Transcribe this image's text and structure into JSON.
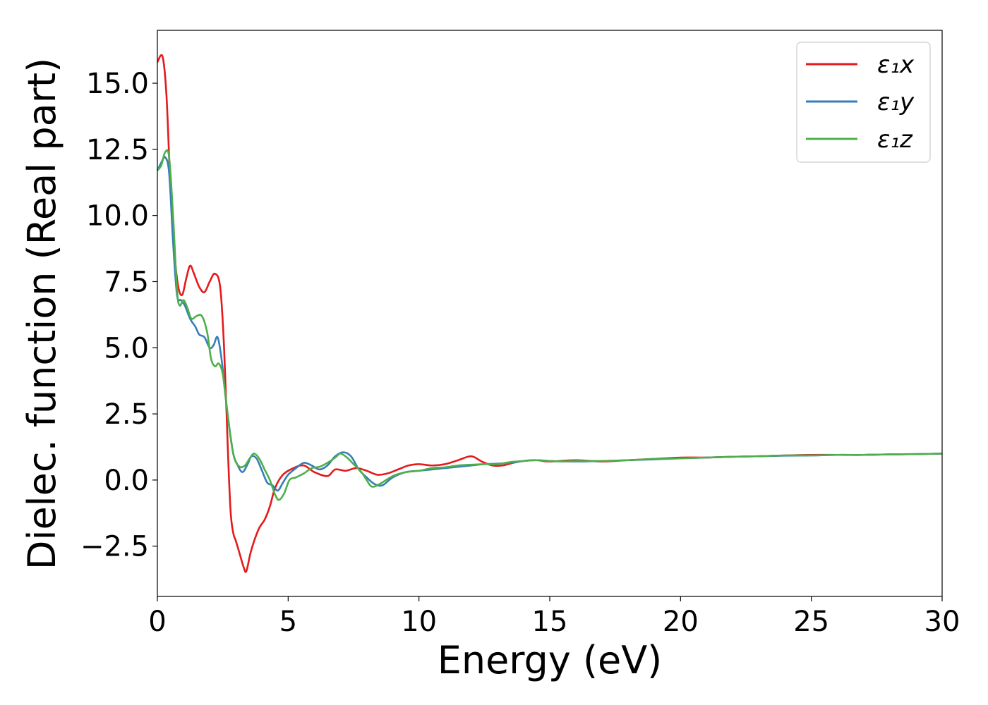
{
  "chart_data": {
    "type": "line",
    "xlabel": "Energy (eV)",
    "ylabel": "Dielec. function (Real part)",
    "xlim": [
      0,
      30
    ],
    "ylim": [
      -4.4,
      17.0
    ],
    "xticks": [
      0,
      5,
      10,
      15,
      20,
      25,
      30
    ],
    "xtick_labels": [
      "0",
      "5",
      "10",
      "15",
      "20",
      "25",
      "30"
    ],
    "yticks": [
      -2.5,
      0.0,
      2.5,
      5.0,
      7.5,
      10.0,
      12.5,
      15.0
    ],
    "ytick_labels": [
      "−2.5",
      "0.0",
      "2.5",
      "5.0",
      "7.5",
      "10.0",
      "12.5",
      "15.0"
    ],
    "grid": false,
    "legend_position": "top-right",
    "series": [
      {
        "name": "ε₁x",
        "color": "#e41a1c",
        "points": [
          [
            0,
            15.8
          ],
          [
            0.2,
            16.0
          ],
          [
            0.35,
            14.5
          ],
          [
            0.5,
            11.0
          ],
          [
            0.65,
            8.6
          ],
          [
            0.8,
            7.3
          ],
          [
            0.95,
            7.0
          ],
          [
            1.1,
            7.6
          ],
          [
            1.25,
            8.1
          ],
          [
            1.4,
            7.8
          ],
          [
            1.6,
            7.3
          ],
          [
            1.8,
            7.1
          ],
          [
            2.0,
            7.5
          ],
          [
            2.2,
            7.8
          ],
          [
            2.4,
            7.3
          ],
          [
            2.55,
            5.0
          ],
          [
            2.7,
            1.0
          ],
          [
            2.8,
            -1.2
          ],
          [
            2.9,
            -2.0
          ],
          [
            3.0,
            -2.3
          ],
          [
            3.15,
            -2.8
          ],
          [
            3.3,
            -3.3
          ],
          [
            3.4,
            -3.45
          ],
          [
            3.55,
            -2.8
          ],
          [
            3.7,
            -2.3
          ],
          [
            3.9,
            -1.8
          ],
          [
            4.1,
            -1.5
          ],
          [
            4.3,
            -1.0
          ],
          [
            4.5,
            -0.3
          ],
          [
            4.8,
            0.2
          ],
          [
            5.2,
            0.45
          ],
          [
            5.6,
            0.55
          ],
          [
            6.0,
            0.3
          ],
          [
            6.5,
            0.15
          ],
          [
            6.8,
            0.4
          ],
          [
            7.2,
            0.35
          ],
          [
            7.6,
            0.45
          ],
          [
            8.0,
            0.35
          ],
          [
            8.4,
            0.2
          ],
          [
            8.8,
            0.25
          ],
          [
            9.2,
            0.4
          ],
          [
            9.6,
            0.55
          ],
          [
            10.0,
            0.6
          ],
          [
            10.5,
            0.55
          ],
          [
            11.0,
            0.6
          ],
          [
            11.5,
            0.75
          ],
          [
            12.0,
            0.9
          ],
          [
            12.4,
            0.7
          ],
          [
            12.8,
            0.55
          ],
          [
            13.2,
            0.55
          ],
          [
            13.6,
            0.65
          ],
          [
            14.0,
            0.72
          ],
          [
            14.5,
            0.75
          ],
          [
            15.0,
            0.7
          ],
          [
            16.0,
            0.75
          ],
          [
            17.0,
            0.7
          ],
          [
            18.0,
            0.75
          ],
          [
            19.0,
            0.8
          ],
          [
            20.0,
            0.85
          ],
          [
            21.0,
            0.85
          ],
          [
            22.0,
            0.88
          ],
          [
            23.0,
            0.9
          ],
          [
            24.0,
            0.93
          ],
          [
            25.0,
            0.95
          ],
          [
            26.0,
            0.95
          ],
          [
            27.0,
            0.95
          ],
          [
            28.0,
            0.97
          ],
          [
            29.0,
            0.98
          ],
          [
            30.0,
            1.0
          ]
        ]
      },
      {
        "name": "ε₁y",
        "color": "#377eb8",
        "points": [
          [
            0,
            11.7
          ],
          [
            0.15,
            12.0
          ],
          [
            0.3,
            12.2
          ],
          [
            0.45,
            11.6
          ],
          [
            0.6,
            9.0
          ],
          [
            0.75,
            7.0
          ],
          [
            0.9,
            6.8
          ],
          [
            1.05,
            6.6
          ],
          [
            1.25,
            6.1
          ],
          [
            1.45,
            5.8
          ],
          [
            1.6,
            5.5
          ],
          [
            1.8,
            5.4
          ],
          [
            2.0,
            5.0
          ],
          [
            2.15,
            5.1
          ],
          [
            2.3,
            5.4
          ],
          [
            2.45,
            4.6
          ],
          [
            2.6,
            3.2
          ],
          [
            2.75,
            2.0
          ],
          [
            2.9,
            1.0
          ],
          [
            3.05,
            0.6
          ],
          [
            3.25,
            0.3
          ],
          [
            3.45,
            0.6
          ],
          [
            3.6,
            0.9
          ],
          [
            3.8,
            0.8
          ],
          [
            4.0,
            0.35
          ],
          [
            4.2,
            -0.1
          ],
          [
            4.4,
            -0.2
          ],
          [
            4.6,
            -0.4
          ],
          [
            4.8,
            -0.1
          ],
          [
            5.0,
            0.2
          ],
          [
            5.3,
            0.45
          ],
          [
            5.6,
            0.65
          ],
          [
            5.9,
            0.55
          ],
          [
            6.2,
            0.4
          ],
          [
            6.5,
            0.55
          ],
          [
            6.8,
            0.9
          ],
          [
            7.1,
            1.05
          ],
          [
            7.4,
            0.9
          ],
          [
            7.7,
            0.4
          ],
          [
            8.0,
            0.1
          ],
          [
            8.3,
            -0.15
          ],
          [
            8.6,
            -0.2
          ],
          [
            9.0,
            0.1
          ],
          [
            9.5,
            0.3
          ],
          [
            10.0,
            0.35
          ],
          [
            10.5,
            0.4
          ],
          [
            11.0,
            0.45
          ],
          [
            11.5,
            0.5
          ],
          [
            12.0,
            0.55
          ],
          [
            12.5,
            0.6
          ],
          [
            13.0,
            0.62
          ],
          [
            13.5,
            0.65
          ],
          [
            14.0,
            0.72
          ],
          [
            14.5,
            0.75
          ],
          [
            15.0,
            0.72
          ],
          [
            16.0,
            0.7
          ],
          [
            17.0,
            0.72
          ],
          [
            18.0,
            0.75
          ],
          [
            19.0,
            0.78
          ],
          [
            20.0,
            0.82
          ],
          [
            21.0,
            0.85
          ],
          [
            22.0,
            0.88
          ],
          [
            23.0,
            0.9
          ],
          [
            24.0,
            0.92
          ],
          [
            25.0,
            0.93
          ],
          [
            26.0,
            0.95
          ],
          [
            27.0,
            0.95
          ],
          [
            28.0,
            0.97
          ],
          [
            29.0,
            0.98
          ],
          [
            30.0,
            1.0
          ]
        ]
      },
      {
        "name": "ε₁z",
        "color": "#4daf4a",
        "points": [
          [
            0,
            11.7
          ],
          [
            0.15,
            11.9
          ],
          [
            0.3,
            12.4
          ],
          [
            0.45,
            12.2
          ],
          [
            0.6,
            10.0
          ],
          [
            0.75,
            7.2
          ],
          [
            0.85,
            6.6
          ],
          [
            1.0,
            6.8
          ],
          [
            1.15,
            6.5
          ],
          [
            1.3,
            6.1
          ],
          [
            1.5,
            6.2
          ],
          [
            1.7,
            6.2
          ],
          [
            1.9,
            5.6
          ],
          [
            2.05,
            4.6
          ],
          [
            2.2,
            4.3
          ],
          [
            2.35,
            4.4
          ],
          [
            2.5,
            4.0
          ],
          [
            2.65,
            2.8
          ],
          [
            2.8,
            1.6
          ],
          [
            2.95,
            0.8
          ],
          [
            3.15,
            0.5
          ],
          [
            3.35,
            0.55
          ],
          [
            3.55,
            0.85
          ],
          [
            3.7,
            1.0
          ],
          [
            3.9,
            0.8
          ],
          [
            4.1,
            0.4
          ],
          [
            4.3,
            0.0
          ],
          [
            4.5,
            -0.55
          ],
          [
            4.65,
            -0.75
          ],
          [
            4.85,
            -0.5
          ],
          [
            5.05,
            0.0
          ],
          [
            5.3,
            0.1
          ],
          [
            5.6,
            0.25
          ],
          [
            5.9,
            0.45
          ],
          [
            6.2,
            0.5
          ],
          [
            6.5,
            0.65
          ],
          [
            6.8,
            0.85
          ],
          [
            7.0,
            1.0
          ],
          [
            7.25,
            0.85
          ],
          [
            7.5,
            0.6
          ],
          [
            7.8,
            0.3
          ],
          [
            8.0,
            0.0
          ],
          [
            8.2,
            -0.25
          ],
          [
            8.5,
            -0.15
          ],
          [
            9.0,
            0.15
          ],
          [
            9.5,
            0.3
          ],
          [
            10.0,
            0.35
          ],
          [
            10.5,
            0.45
          ],
          [
            11.0,
            0.48
          ],
          [
            11.5,
            0.55
          ],
          [
            12.0,
            0.58
          ],
          [
            12.5,
            0.6
          ],
          [
            13.0,
            0.6
          ],
          [
            13.5,
            0.68
          ],
          [
            14.0,
            0.72
          ],
          [
            14.5,
            0.75
          ],
          [
            15.0,
            0.72
          ],
          [
            15.5,
            0.7
          ],
          [
            16.0,
            0.72
          ],
          [
            17.0,
            0.72
          ],
          [
            18.0,
            0.75
          ],
          [
            19.0,
            0.8
          ],
          [
            20.0,
            0.82
          ],
          [
            21.0,
            0.85
          ],
          [
            22.0,
            0.88
          ],
          [
            23.0,
            0.9
          ],
          [
            24.0,
            0.93
          ],
          [
            25.0,
            0.93
          ],
          [
            26.0,
            0.95
          ],
          [
            27.0,
            0.95
          ],
          [
            28.0,
            0.97
          ],
          [
            29.0,
            0.98
          ],
          [
            30.0,
            1.0
          ]
        ]
      }
    ]
  }
}
